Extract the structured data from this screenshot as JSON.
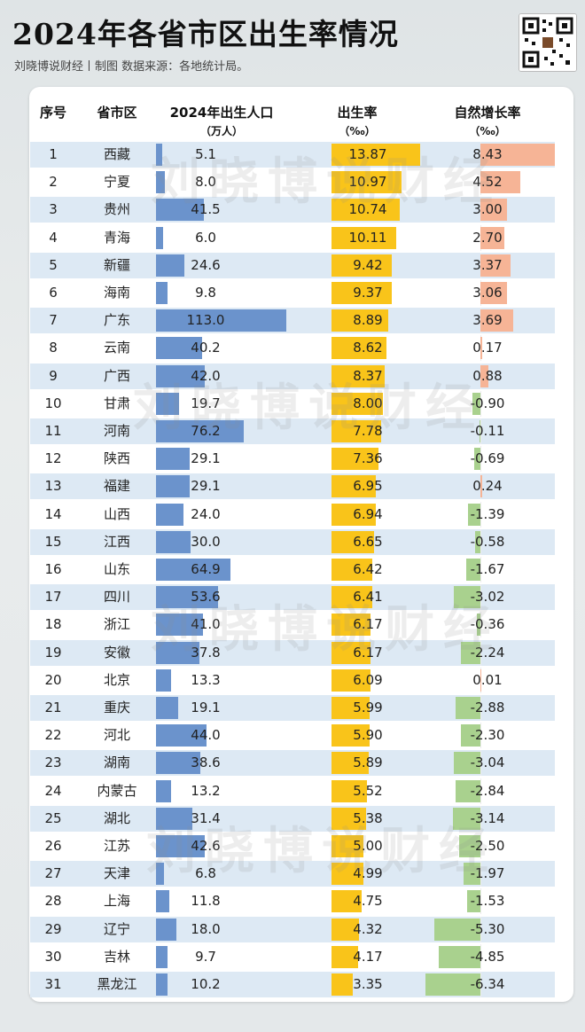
{
  "header": {
    "title": "2024年各省市区出生率情况",
    "subtitle": "刘晓博说财经丨制图   数据来源：各地统计局。"
  },
  "watermark": "刘晓博说财经",
  "chart_data": {
    "type": "table",
    "columns": {
      "rank": "序号",
      "region": "省市区",
      "births": "2024年出生人口",
      "births_unit": "（万人）",
      "birth_rate": "出生率",
      "birth_rate_unit": "（‰）",
      "natural_growth": "自然增长率",
      "natural_growth_unit": "（‰）"
    },
    "rows": [
      {
        "rank": "1",
        "region": "西藏",
        "births": "5.1",
        "birth_rate": "13.87",
        "natural_growth": "8.43"
      },
      {
        "rank": "2",
        "region": "宁夏",
        "births": "8.0",
        "birth_rate": "10.97",
        "natural_growth": "4.52"
      },
      {
        "rank": "3",
        "region": "贵州",
        "births": "41.5",
        "birth_rate": "10.74",
        "natural_growth": "3.00"
      },
      {
        "rank": "4",
        "region": "青海",
        "births": "6.0",
        "birth_rate": "10.11",
        "natural_growth": "2.70"
      },
      {
        "rank": "5",
        "region": "新疆",
        "births": "24.6",
        "birth_rate": "9.42",
        "natural_growth": "3.37"
      },
      {
        "rank": "6",
        "region": "海南",
        "births": "9.8",
        "birth_rate": "9.37",
        "natural_growth": "3.06"
      },
      {
        "rank": "7",
        "region": "广东",
        "births": "113.0",
        "birth_rate": "8.89",
        "natural_growth": "3.69"
      },
      {
        "rank": "8",
        "region": "云南",
        "births": "40.2",
        "birth_rate": "8.62",
        "natural_growth": "0.17"
      },
      {
        "rank": "9",
        "region": "广西",
        "births": "42.0",
        "birth_rate": "8.37",
        "natural_growth": "0.88"
      },
      {
        "rank": "10",
        "region": "甘肃",
        "births": "19.7",
        "birth_rate": "8.00",
        "natural_growth": "-0.90"
      },
      {
        "rank": "11",
        "region": "河南",
        "births": "76.2",
        "birth_rate": "7.78",
        "natural_growth": "-0.11"
      },
      {
        "rank": "12",
        "region": "陕西",
        "births": "29.1",
        "birth_rate": "7.36",
        "natural_growth": "-0.69"
      },
      {
        "rank": "13",
        "region": "福建",
        "births": "29.1",
        "birth_rate": "6.95",
        "natural_growth": "0.24"
      },
      {
        "rank": "14",
        "region": "山西",
        "births": "24.0",
        "birth_rate": "6.94",
        "natural_growth": "-1.39"
      },
      {
        "rank": "15",
        "region": "江西",
        "births": "30.0",
        "birth_rate": "6.65",
        "natural_growth": "-0.58"
      },
      {
        "rank": "16",
        "region": "山东",
        "births": "64.9",
        "birth_rate": "6.42",
        "natural_growth": "-1.67"
      },
      {
        "rank": "17",
        "region": "四川",
        "births": "53.6",
        "birth_rate": "6.41",
        "natural_growth": "-3.02"
      },
      {
        "rank": "18",
        "region": "浙江",
        "births": "41.0",
        "birth_rate": "6.17",
        "natural_growth": "-0.36"
      },
      {
        "rank": "19",
        "region": "安徽",
        "births": "37.8",
        "birth_rate": "6.17",
        "natural_growth": "-2.24"
      },
      {
        "rank": "20",
        "region": "北京",
        "births": "13.3",
        "birth_rate": "6.09",
        "natural_growth": "0.01"
      },
      {
        "rank": "21",
        "region": "重庆",
        "births": "19.1",
        "birth_rate": "5.99",
        "natural_growth": "-2.88"
      },
      {
        "rank": "22",
        "region": "河北",
        "births": "44.0",
        "birth_rate": "5.90",
        "natural_growth": "-2.30"
      },
      {
        "rank": "23",
        "region": "湖南",
        "births": "38.6",
        "birth_rate": "5.89",
        "natural_growth": "-3.04"
      },
      {
        "rank": "24",
        "region": "内蒙古",
        "births": "13.2",
        "birth_rate": "5.52",
        "natural_growth": "-2.84"
      },
      {
        "rank": "25",
        "region": "湖北",
        "births": "31.4",
        "birth_rate": "5.38",
        "natural_growth": "-3.14"
      },
      {
        "rank": "26",
        "region": "江苏",
        "births": "42.6",
        "birth_rate": "5.00",
        "natural_growth": "-2.50"
      },
      {
        "rank": "27",
        "region": "天津",
        "births": "6.8",
        "birth_rate": "4.99",
        "natural_growth": "-1.97"
      },
      {
        "rank": "28",
        "region": "上海",
        "births": "11.8",
        "birth_rate": "4.75",
        "natural_growth": "-1.53"
      },
      {
        "rank": "29",
        "region": "辽宁",
        "births": "18.0",
        "birth_rate": "4.32",
        "natural_growth": "-5.30"
      },
      {
        "rank": "30",
        "region": "吉林",
        "births": "9.7",
        "birth_rate": "4.17",
        "natural_growth": "-4.85"
      },
      {
        "rank": "31",
        "region": "黑龙江",
        "births": "10.2",
        "birth_rate": "3.35",
        "natural_growth": "-6.34"
      }
    ],
    "colors": {
      "births_bar": "#6b93cc",
      "birth_rate_bar": "#f9c41a",
      "growth_positive_bar": "#f6b496",
      "growth_negative_bar": "#a9d18e",
      "row_stripe": "#dde9f4"
    }
  }
}
